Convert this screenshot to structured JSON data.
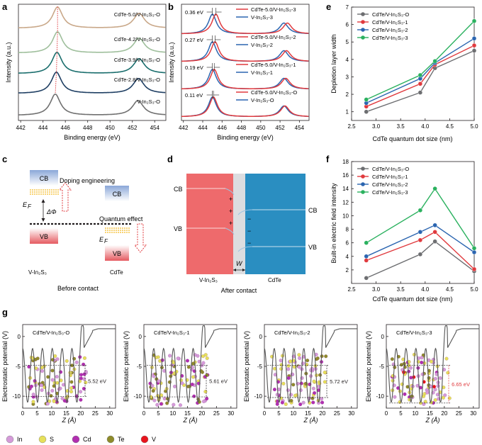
{
  "panels": {
    "a": {
      "label": "a",
      "xlabel": "Binding energy (eV)",
      "ylabel": "Intensity (a.u.)",
      "xticks": [
        "442",
        "444",
        "446",
        "448",
        "450",
        "452",
        "454"
      ],
      "curves": [
        {
          "name": "CdTe-5.0/V-In₂S₃-O",
          "color": "#c9a889",
          "peak1": 445.3,
          "peak2": 452.6
        },
        {
          "name": "CdTe-4.2/V-In₂S₃-O",
          "color": "#9fbf9c",
          "peak1": 445.3,
          "peak2": 452.6
        },
        {
          "name": "CdTe-3.9/V-In₂S₃-O",
          "color": "#1a6e6d",
          "peak1": 445.25,
          "peak2": 452.6
        },
        {
          "name": "CdTe-2.8/V-In₂S₃-O",
          "color": "#1f3f63",
          "peak1": 445.2,
          "peak2": 452.55
        },
        {
          "name": "V-In₂S₃-O",
          "color": "#707070",
          "peak1": 445.1,
          "peak2": 452.5
        }
      ]
    },
    "b": {
      "label": "b",
      "xlabel": "Binding energy (eV)",
      "ylabel": "Intensity (a.u.)",
      "xticks": [
        "442",
        "444",
        "446",
        "448",
        "450",
        "452",
        "454"
      ],
      "groups": [
        {
          "shift": "0.36 eV",
          "red": "CdTe-5.0/V-In₂S₃-3",
          "blue": "V-In₂S₃-3"
        },
        {
          "shift": "0.27 eV",
          "red": "CdTe-5.0/V-In₂S₃-2",
          "blue": "V-In₂S₃-2"
        },
        {
          "shift": "0.19 eV",
          "red": "CdTe-5.0/V-In₂S₃-1",
          "blue": "V-In₂S₃-1"
        },
        {
          "shift": "0.11 eV",
          "red": "CdTe-5.0/V-In₂S₃-O",
          "blue": "V-In₂S₃-O"
        }
      ],
      "red_color": "#e03a3e",
      "blue_color": "#2b65b0"
    },
    "c": {
      "label": "c",
      "cb": "CB",
      "vb": "VB",
      "doping": "Doping engineering",
      "quantum": "Quantum effect",
      "ef": "E",
      "ef_sub": "F",
      "dphi": "ΔΦ",
      "left_name": "V-In₂S₃",
      "right_name": "CdTe",
      "caption": "Before contact"
    },
    "d": {
      "label": "d",
      "cb": "CB",
      "vb": "VB",
      "w": "W",
      "plus": [
        "+",
        "+",
        "+"
      ],
      "minus": [
        "−",
        "−",
        "−"
      ],
      "left_name": "V-In₂S₃",
      "right_name": "CdTe",
      "caption": "After contact"
    },
    "e": {
      "label": "e",
      "xlabel": "CdTe quantum dot size (nm)",
      "ylabel": "Depletion layer width",
      "xticks": [
        "2.5",
        "3.0",
        "3.5",
        "4.0",
        "4.5",
        "5.0"
      ],
      "yticks": [
        "1",
        "2",
        "3",
        "4",
        "5",
        "6",
        "7"
      ]
    },
    "f": {
      "label": "f",
      "xlabel": "CdTe quantum dot size (nm)",
      "ylabel": "Built-in electric field intensity",
      "xticks": [
        "2.5",
        "3.0",
        "3.5",
        "4.0",
        "4.5",
        "5.0"
      ],
      "yticks": [
        "2",
        "4",
        "6",
        "8",
        "10",
        "12",
        "14",
        "16",
        "18"
      ]
    },
    "g": {
      "label": "g",
      "ylabel": "Electrostatic potential (V)",
      "xlabel": "Z (Å)",
      "xticks": [
        "0",
        "5",
        "10",
        "15",
        "20",
        "25",
        "30"
      ],
      "yticks": [
        "0",
        "-5",
        "-10"
      ],
      "subpanels": [
        {
          "title": "CdTe/V-In₂S₃-O",
          "value": "5.52 eV",
          "color": "#231f20"
        },
        {
          "title": "CdTe/V-In₂S₃-1",
          "value": "5.61 eV",
          "color": "#231f20"
        },
        {
          "title": "CdTe/V-In₂S₃-2",
          "value": "5.72 eV",
          "color": "#231f20"
        },
        {
          "title": "CdTe/V-In₂S₃-3",
          "value": "6.65 eV",
          "color": "#e03a3e"
        }
      ],
      "legend": [
        {
          "name": "In",
          "color": "#d59ad9"
        },
        {
          "name": "S",
          "color": "#e6e05a"
        },
        {
          "name": "Cd",
          "color": "#b12fb0"
        },
        {
          "name": "Te",
          "color": "#8e8b2a"
        },
        {
          "name": "V",
          "color": "#e8141d"
        }
      ]
    }
  },
  "chart_data": [
    {
      "type": "line",
      "panel": "e",
      "title": "",
      "xlabel": "CdTe quantum dot size (nm)",
      "ylabel": "Depletion layer width",
      "x": [
        2.8,
        3.9,
        4.2,
        5.0
      ],
      "xlim": [
        2.5,
        5.0
      ],
      "ylim": [
        0.5,
        7
      ],
      "series": [
        {
          "name": "CdTe/V-In₂S₃-O",
          "color": "#6d6e71",
          "values": [
            1.0,
            2.1,
            3.5,
            4.5
          ]
        },
        {
          "name": "CdTe/V-In₂S₃-1",
          "color": "#e03a3e",
          "values": [
            1.3,
            2.6,
            3.7,
            4.8
          ]
        },
        {
          "name": "CdTe/V-In₂S₃-2",
          "color": "#2b65b0",
          "values": [
            1.5,
            2.9,
            3.8,
            5.2
          ]
        },
        {
          "name": "CdTe/V-In₂S₃-3",
          "color": "#2bb15f",
          "values": [
            1.7,
            3.1,
            3.9,
            6.2
          ]
        }
      ]
    },
    {
      "type": "line",
      "panel": "f",
      "title": "",
      "xlabel": "CdTe quantum dot size (nm)",
      "ylabel": "Built-in electric field intensity",
      "x": [
        2.8,
        3.9,
        4.2,
        5.0
      ],
      "xlim": [
        2.5,
        5.0
      ],
      "ylim": [
        0,
        18
      ],
      "series": [
        {
          "name": "CdTe/V-In₂S₃-O",
          "color": "#6d6e71",
          "values": [
            0.8,
            4.3,
            6.2,
            1.8
          ]
        },
        {
          "name": "CdTe/V-In₂S₃-1",
          "color": "#e03a3e",
          "values": [
            3.4,
            6.4,
            7.6,
            2.1
          ]
        },
        {
          "name": "CdTe/V-In₂S₃-2",
          "color": "#2b65b0",
          "values": [
            4.0,
            7.6,
            8.6,
            4.6
          ]
        },
        {
          "name": "CdTe/V-In₂S₃-3",
          "color": "#2bb15f",
          "values": [
            6.0,
            10.8,
            14.0,
            5.2
          ]
        }
      ]
    }
  ]
}
